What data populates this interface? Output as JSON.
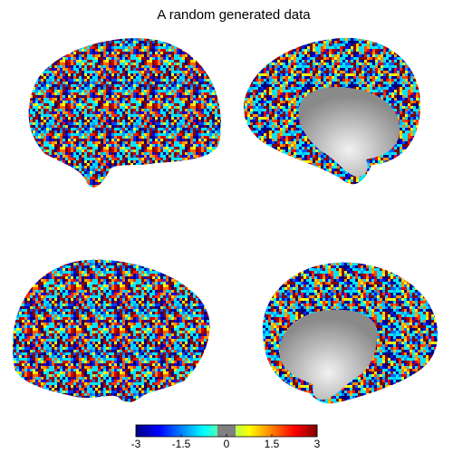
{
  "title": "A random generated data",
  "colorbar": {
    "lim": [
      -3,
      3
    ],
    "ticks": [
      -3,
      -1.5,
      0,
      1.5,
      3
    ]
  }
}
